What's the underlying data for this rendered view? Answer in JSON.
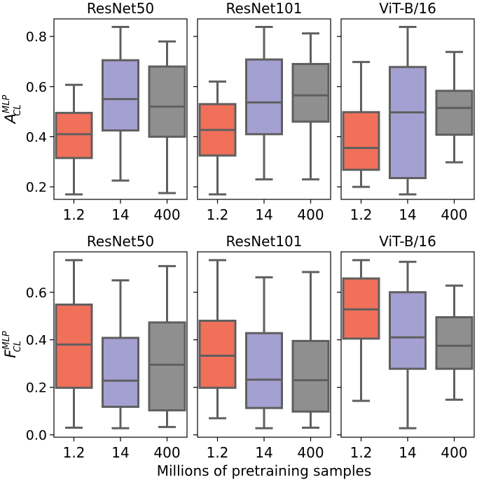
{
  "chart_data": {
    "type": "box",
    "categories": [
      "1.2",
      "14",
      "400"
    ],
    "xlabel": "Millions of pretraining samples",
    "colors": [
      "#f0705a",
      "#a5a0d2",
      "#8f8f8f"
    ],
    "rows": [
      {
        "ylabel_main": "A",
        "ylabel_sup": "MLP",
        "ylabel_sub": "CL",
        "ylim": [
          0.15,
          0.87
        ],
        "yticks": [
          0.2,
          0.4,
          0.6,
          0.8
        ],
        "ytick_labels": [
          "0.2",
          "0.4",
          "0.6",
          "0.8"
        ],
        "panels": [
          {
            "title": "ResNet50",
            "boxes": [
              {
                "min": 0.17,
                "q1": 0.315,
                "median": 0.41,
                "q3": 0.495,
                "max": 0.607
              },
              {
                "min": 0.225,
                "q1": 0.425,
                "median": 0.55,
                "q3": 0.705,
                "max": 0.838
              },
              {
                "min": 0.175,
                "q1": 0.4,
                "median": 0.52,
                "q3": 0.68,
                "max": 0.78
              }
            ]
          },
          {
            "title": "ResNet101",
            "boxes": [
              {
                "min": 0.17,
                "q1": 0.325,
                "median": 0.427,
                "q3": 0.53,
                "max": 0.62
              },
              {
                "min": 0.23,
                "q1": 0.41,
                "median": 0.537,
                "q3": 0.708,
                "max": 0.838
              },
              {
                "min": 0.23,
                "q1": 0.46,
                "median": 0.565,
                "q3": 0.69,
                "max": 0.812
              }
            ]
          },
          {
            "title": "ViT-B/16",
            "boxes": [
              {
                "min": 0.2,
                "q1": 0.268,
                "median": 0.355,
                "q3": 0.498,
                "max": 0.698
              },
              {
                "min": 0.17,
                "q1": 0.235,
                "median": 0.497,
                "q3": 0.678,
                "max": 0.838
              },
              {
                "min": 0.298,
                "q1": 0.408,
                "median": 0.515,
                "q3": 0.583,
                "max": 0.738
              }
            ]
          }
        ]
      },
      {
        "ylabel_main": "F",
        "ylabel_sup": "MLP",
        "ylabel_sub": "CL",
        "ylim": [
          -0.01,
          0.77
        ],
        "yticks": [
          0.0,
          0.2,
          0.4,
          0.6
        ],
        "ytick_labels": [
          "0.0",
          "0.2",
          "0.4",
          "0.6"
        ],
        "panels": [
          {
            "title": "ResNet50",
            "boxes": [
              {
                "min": 0.03,
                "q1": 0.198,
                "median": 0.38,
                "q3": 0.548,
                "max": 0.735
              },
              {
                "min": 0.028,
                "q1": 0.118,
                "median": 0.228,
                "q3": 0.408,
                "max": 0.65
              },
              {
                "min": 0.033,
                "q1": 0.103,
                "median": 0.295,
                "q3": 0.473,
                "max": 0.71
              }
            ]
          },
          {
            "title": "ResNet101",
            "boxes": [
              {
                "min": 0.07,
                "q1": 0.198,
                "median": 0.333,
                "q3": 0.48,
                "max": 0.735
              },
              {
                "min": 0.028,
                "q1": 0.113,
                "median": 0.232,
                "q3": 0.428,
                "max": 0.663
              },
              {
                "min": 0.03,
                "q1": 0.098,
                "median": 0.23,
                "q3": 0.395,
                "max": 0.685
              }
            ]
          },
          {
            "title": "ViT-B/16",
            "boxes": [
              {
                "min": 0.143,
                "q1": 0.405,
                "median": 0.528,
                "q3": 0.658,
                "max": 0.735
              },
              {
                "min": 0.028,
                "q1": 0.278,
                "median": 0.41,
                "q3": 0.6,
                "max": 0.728
              },
              {
                "min": 0.148,
                "q1": 0.278,
                "median": 0.375,
                "q3": 0.495,
                "max": 0.628
              }
            ]
          }
        ]
      }
    ]
  }
}
